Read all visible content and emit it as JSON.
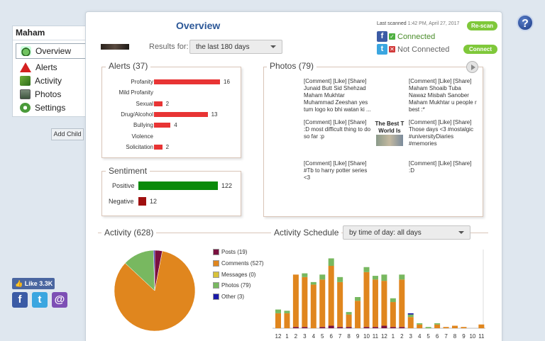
{
  "sidebar": {
    "child_name": "Maham",
    "items": [
      {
        "label": "Overview",
        "icon": "overview-icon"
      },
      {
        "label": "Alerts",
        "icon": "alert-icon"
      },
      {
        "label": "Activity",
        "icon": "activity-icon"
      },
      {
        "label": "Photos",
        "icon": "photos-icon"
      },
      {
        "label": "Settings",
        "icon": "settings-icon"
      }
    ],
    "add_child": "Add Child"
  },
  "social": {
    "like": "Like 3.3K"
  },
  "header": {
    "title": "Overview",
    "last_scanned_label": "Last scanned",
    "last_scanned_date": "1:42 PM, April 27, 2017",
    "rescan": "Re-scan",
    "facebook_status": "Connected",
    "twitter_status": "Not Connected",
    "connect": "Connect",
    "results_for": "Results for:",
    "results_value": "the last 180 days"
  },
  "alerts": {
    "title": "Alerts (37)",
    "rows": [
      {
        "label": "Profanity",
        "value": 16
      },
      {
        "label": "Mild Profanity",
        "value": 0
      },
      {
        "label": "Sexual",
        "value": 2
      },
      {
        "label": "Drug/Alcohol",
        "value": 13
      },
      {
        "label": "Bullying",
        "value": 4
      },
      {
        "label": "Violence",
        "value": 0
      },
      {
        "label": "Solicitation",
        "value": 2
      }
    ],
    "max": 16
  },
  "sentiment": {
    "title": "Sentiment",
    "positive_label": "Positive",
    "positive_value": 122,
    "negative_label": "Negative",
    "negative_value": 12,
    "positive_color": "#0a8a0a",
    "negative_color": "#a01010"
  },
  "photos": {
    "title": "Photos (79)",
    "items": [
      "[Comment] [Like] [Share]\nJunaid Butt Sid Shehzad Maham Mukhtar Muhammad Zeeshan yes tum logo ko bhi watan ki ...",
      "[Comment] [Like] [Share]\nMaham Shoaib Tuba Nawaz Misbah Sanober Maham Mukhtar u people r best :*",
      "[Comment] [Like] [Share]\n:D most difficult thing to do so far :p",
      "[Comment] [Like] [Share]\nThose days <3 #nostalgic #universityDiaries #memories",
      "[Comment] [Like] [Share]\n#Tb to harry potter series <3",
      "[Comment] [Like] [Share]\n:D"
    ],
    "thumb_text": "The Best T World Is"
  },
  "activity": {
    "title": "Activity (628)",
    "legend": [
      {
        "label": "Posts (19)",
        "value": 19,
        "color": "#7a1040"
      },
      {
        "label": "Comments (527)",
        "value": 527,
        "color": "#e0861e"
      },
      {
        "label": "Messages (0)",
        "value": 0,
        "color": "#d8c23a"
      },
      {
        "label": "Photos (79)",
        "value": 79,
        "color": "#78b860"
      },
      {
        "label": "Other (3)",
        "value": 3,
        "color": "#1a1aa8"
      }
    ]
  },
  "schedule": {
    "title": "Activity Schedule",
    "dropdown": "by time of day: all days",
    "tick_labels": [
      "12",
      "1",
      "2",
      "3",
      "4",
      "5",
      "6",
      "7",
      "8",
      "9",
      "10",
      "11",
      "12",
      "1",
      "2",
      "3",
      "4",
      "5",
      "6",
      "7",
      "8",
      "9",
      "10",
      "11"
    ]
  },
  "chart_data": [
    {
      "type": "pie",
      "categories": [
        "Posts",
        "Comments",
        "Messages",
        "Photos",
        "Other"
      ],
      "values": [
        19,
        527,
        0,
        79,
        3
      ]
    },
    {
      "type": "bar",
      "categories": [
        "12",
        "1",
        "2",
        "3",
        "4",
        "5",
        "6",
        "7",
        "8",
        "9",
        "10",
        "11",
        "12",
        "1",
        "2",
        "3",
        "4",
        "5",
        "6",
        "7",
        "8",
        "9",
        "10",
        "11"
      ],
      "series": [
        {
          "name": "Posts",
          "values": [
            0,
            0,
            1,
            1,
            0,
            1,
            2,
            1,
            1,
            0,
            1,
            1,
            2,
            1,
            1,
            0,
            0,
            0,
            0,
            0,
            0,
            0,
            0,
            0
          ]
        },
        {
          "name": "Comments",
          "values": [
            12,
            12,
            42,
            40,
            35,
            38,
            48,
            36,
            10,
            22,
            44,
            38,
            36,
            20,
            38,
            9,
            3,
            0,
            3,
            1,
            2,
            1,
            0,
            3
          ]
        },
        {
          "name": "Photos",
          "values": [
            3,
            2,
            0,
            3,
            2,
            4,
            6,
            4,
            2,
            3,
            4,
            3,
            5,
            3,
            4,
            2,
            1,
            1,
            1,
            0,
            0,
            0,
            0,
            0
          ]
        },
        {
          "name": "Other",
          "values": [
            0,
            0,
            0,
            0,
            0,
            0,
            0,
            0,
            0,
            0,
            0,
            0,
            0,
            0,
            0,
            1,
            0,
            0,
            0,
            0,
            0,
            0,
            0,
            0
          ]
        }
      ]
    }
  ]
}
